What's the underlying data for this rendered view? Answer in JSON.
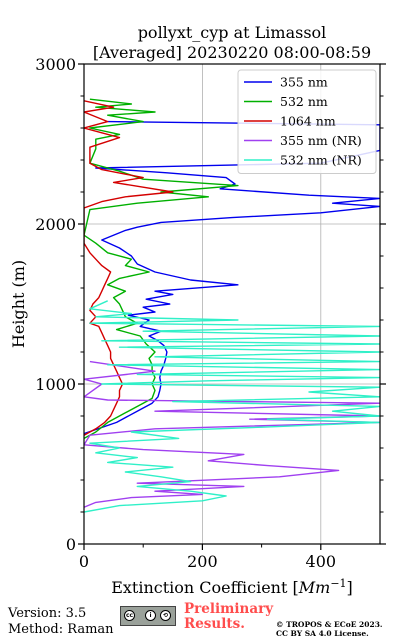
{
  "chart_data": {
    "type": "line",
    "title_line1": "pollyxt_cyp at Limassol",
    "title_line2": "[Averaged] 20230220 08:00-08:59",
    "xlabel": "Extinction Coefficient [",
    "xlabel_unit": "Mm",
    "xlabel_exp": "−1",
    "xlabel_end": "]",
    "ylabel": "Height (m)",
    "xlim": [
      0,
      500
    ],
    "ylim": [
      0,
      3000
    ],
    "x_ticks": [
      "0",
      "200",
      "400"
    ],
    "y_ticks": [
      "0",
      "1000",
      "2000",
      "3000"
    ],
    "legend_position": "top-right",
    "grid": true,
    "series": [
      {
        "name": "355 nm",
        "color": "#0000ee",
        "points": [
          [
            0,
            690
          ],
          [
            55,
            760
          ],
          [
            95,
            840
          ],
          [
            115,
            880
          ],
          [
            125,
            920
          ],
          [
            128,
            960
          ],
          [
            130,
            1000
          ],
          [
            128,
            1040
          ],
          [
            130,
            1080
          ],
          [
            135,
            1120
          ],
          [
            138,
            1160
          ],
          [
            140,
            1200
          ],
          [
            135,
            1240
          ],
          [
            125,
            1270
          ],
          [
            110,
            1300
          ],
          [
            130,
            1330
          ],
          [
            95,
            1360
          ],
          [
            110,
            1400
          ],
          [
            75,
            1430
          ],
          [
            120,
            1450
          ],
          [
            100,
            1480
          ],
          [
            145,
            1500
          ],
          [
            105,
            1530
          ],
          [
            150,
            1560
          ],
          [
            120,
            1580
          ],
          [
            260,
            1620
          ],
          [
            180,
            1650
          ],
          [
            120,
            1700
          ],
          [
            90,
            1750
          ],
          [
            80,
            1800
          ],
          [
            60,
            1850
          ],
          [
            30,
            1900
          ],
          [
            70,
            1960
          ],
          [
            90,
            1980
          ],
          [
            130,
            2010
          ],
          [
            250,
            2040
          ],
          [
            400,
            2070
          ],
          [
            500,
            2110
          ],
          [
            420,
            2130
          ],
          [
            500,
            2160
          ],
          [
            380,
            2180
          ],
          [
            230,
            2220
          ],
          [
            255,
            2250
          ],
          [
            240,
            2290
          ],
          [
            140,
            2320
          ],
          [
            20,
            2350
          ],
          [
            400,
            2380
          ],
          [
            500,
            2460
          ],
          [
            500,
            2540
          ],
          [
            500,
            2620
          ],
          [
            40,
            2640
          ]
        ]
      },
      {
        "name": "532 nm",
        "color": "#00b000",
        "points": [
          [
            0,
            660
          ],
          [
            20,
            700
          ],
          [
            40,
            760
          ],
          [
            70,
            820
          ],
          [
            100,
            880
          ],
          [
            115,
            910
          ],
          [
            120,
            960
          ],
          [
            115,
            1000
          ],
          [
            120,
            1040
          ],
          [
            115,
            1080
          ],
          [
            115,
            1120
          ],
          [
            110,
            1160
          ],
          [
            120,
            1200
          ],
          [
            105,
            1250
          ],
          [
            95,
            1300
          ],
          [
            55,
            1340
          ],
          [
            90,
            1380
          ],
          [
            70,
            1420
          ],
          [
            65,
            1460
          ],
          [
            60,
            1500
          ],
          [
            50,
            1540
          ],
          [
            70,
            1580
          ],
          [
            40,
            1620
          ],
          [
            60,
            1660
          ],
          [
            110,
            1700
          ],
          [
            70,
            1740
          ],
          [
            80,
            1780
          ],
          [
            40,
            1820
          ],
          [
            20,
            1880
          ],
          [
            0,
            1930
          ],
          [
            10,
            2090
          ],
          [
            90,
            2130
          ],
          [
            210,
            2170
          ],
          [
            130,
            2200
          ],
          [
            260,
            2240
          ],
          [
            100,
            2280
          ],
          [
            60,
            2330
          ],
          [
            10,
            2380
          ],
          [
            20,
            2470
          ],
          [
            20,
            2530
          ],
          [
            60,
            2560
          ],
          [
            10,
            2600
          ],
          [
            100,
            2640
          ],
          [
            40,
            2680
          ],
          [
            120,
            2700
          ],
          [
            20,
            2730
          ],
          [
            80,
            2750
          ],
          [
            10,
            2780
          ]
        ]
      },
      {
        "name": "1064 nm",
        "color": "#d40000",
        "points": [
          [
            0,
            680
          ],
          [
            20,
            720
          ],
          [
            35,
            760
          ],
          [
            45,
            800
          ],
          [
            50,
            840
          ],
          [
            55,
            880
          ],
          [
            60,
            920
          ],
          [
            60,
            960
          ],
          [
            65,
            1000
          ],
          [
            60,
            1040
          ],
          [
            55,
            1080
          ],
          [
            50,
            1120
          ],
          [
            45,
            1160
          ],
          [
            45,
            1200
          ],
          [
            40,
            1240
          ],
          [
            35,
            1280
          ],
          [
            30,
            1320
          ],
          [
            25,
            1360
          ],
          [
            10,
            1380
          ],
          [
            20,
            1420
          ],
          [
            10,
            1460
          ],
          [
            15,
            1500
          ],
          [
            25,
            1540
          ],
          [
            30,
            1580
          ],
          [
            35,
            1620
          ],
          [
            40,
            1660
          ],
          [
            45,
            1700
          ],
          [
            30,
            1740
          ],
          [
            20,
            1780
          ],
          [
            10,
            1820
          ],
          [
            0,
            1880
          ],
          [
            0,
            2100
          ],
          [
            30,
            2140
          ],
          [
            70,
            2170
          ],
          [
            150,
            2200
          ],
          [
            100,
            2230
          ],
          [
            50,
            2260
          ],
          [
            100,
            2290
          ],
          [
            30,
            2340
          ],
          [
            10,
            2380
          ],
          [
            10,
            2480
          ],
          [
            60,
            2540
          ],
          [
            0,
            2600
          ],
          [
            40,
            2640
          ],
          [
            0,
            2700
          ],
          [
            50,
            2730
          ],
          [
            0,
            2770
          ]
        ]
      },
      {
        "name": "355 nm (NR)",
        "color": "#a040f0",
        "points": [
          [
            0,
            230
          ],
          [
            20,
            260
          ],
          [
            80,
            290
          ],
          [
            200,
            310
          ],
          [
            120,
            330
          ],
          [
            270,
            360
          ],
          [
            90,
            380
          ],
          [
            330,
            420
          ],
          [
            430,
            460
          ],
          [
            310,
            490
          ],
          [
            210,
            520
          ],
          [
            270,
            560
          ],
          [
            100,
            590
          ],
          [
            0,
            620
          ],
          [
            10,
            680
          ],
          [
            120,
            720
          ],
          [
            500,
            760
          ],
          [
            280,
            780
          ],
          [
            500,
            800
          ],
          [
            120,
            830
          ],
          [
            500,
            880
          ],
          [
            40,
            900
          ],
          [
            0,
            920
          ],
          [
            30,
            1000
          ],
          [
            0,
            1030
          ],
          [
            120,
            1080
          ],
          [
            10,
            1140
          ]
        ]
      },
      {
        "name": "532 nm (NR)",
        "color": "#30f0c8",
        "points": [
          [
            0,
            200
          ],
          [
            60,
            240
          ],
          [
            200,
            270
          ],
          [
            240,
            300
          ],
          [
            180,
            330
          ],
          [
            90,
            360
          ],
          [
            180,
            390
          ],
          [
            130,
            420
          ],
          [
            70,
            450
          ],
          [
            150,
            480
          ],
          [
            40,
            510
          ],
          [
            90,
            540
          ],
          [
            20,
            570
          ],
          [
            60,
            600
          ],
          [
            10,
            630
          ],
          [
            160,
            660
          ],
          [
            80,
            700
          ],
          [
            300,
            730
          ],
          [
            500,
            760
          ],
          [
            310,
            780
          ],
          [
            500,
            800
          ],
          [
            420,
            830
          ],
          [
            500,
            860
          ],
          [
            150,
            890
          ],
          [
            500,
            920
          ],
          [
            380,
            950
          ],
          [
            500,
            980
          ],
          [
            30,
            1000
          ],
          [
            210,
            1020
          ],
          [
            500,
            1040
          ],
          [
            90,
            1060
          ],
          [
            500,
            1090
          ],
          [
            40,
            1120
          ],
          [
            500,
            1140
          ],
          [
            120,
            1170
          ],
          [
            500,
            1200
          ],
          [
            60,
            1230
          ],
          [
            500,
            1250
          ],
          [
            30,
            1270
          ],
          [
            500,
            1300
          ],
          [
            100,
            1330
          ],
          [
            500,
            1360
          ],
          [
            10,
            1380
          ],
          [
            260,
            1400
          ],
          [
            20,
            1420
          ],
          [
            80,
            1440
          ],
          [
            10,
            1470
          ],
          [
            40,
            1520
          ]
        ]
      }
    ]
  },
  "footer": {
    "version": "Version: 3.5",
    "method": "Method: Raman",
    "prelim_line1": "Preliminary",
    "prelim_line2": "Results.",
    "copyright_line1": "© TROPOS & ECoE 2023.",
    "copyright_line2": "CC BY SA 4.0 License."
  }
}
